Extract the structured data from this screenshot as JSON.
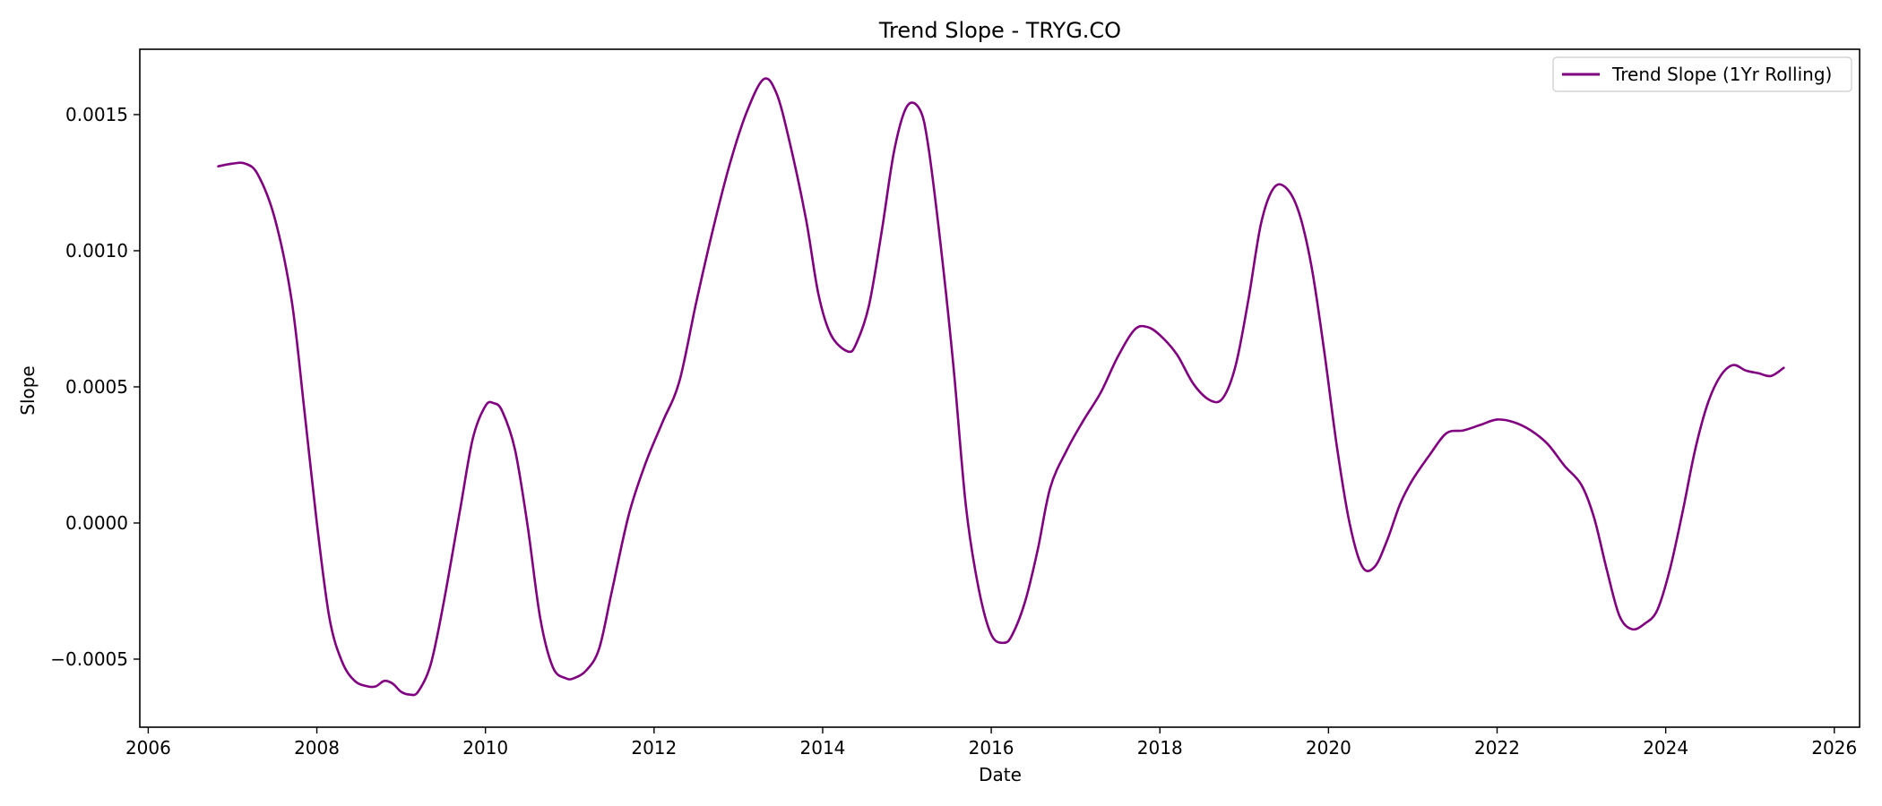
{
  "chart_data": {
    "type": "line",
    "title": "Trend Slope - TRYG.CO",
    "xlabel": "Date",
    "ylabel": "Slope",
    "xlim": [
      2005.9,
      2026.3
    ],
    "ylim": [
      -0.00075,
      0.00174
    ],
    "x_ticks": [
      2006,
      2008,
      2010,
      2012,
      2014,
      2016,
      2018,
      2020,
      2022,
      2024,
      2026
    ],
    "x_tick_labels": [
      "2006",
      "2008",
      "2010",
      "2012",
      "2014",
      "2016",
      "2018",
      "2020",
      "2022",
      "2024",
      "2026"
    ],
    "y_ticks": [
      -0.0005,
      0.0,
      0.0005,
      0.001,
      0.0015
    ],
    "y_tick_labels": [
      "−0.0005",
      "0.0000",
      "0.0005",
      "0.0010",
      "0.0015"
    ],
    "grid": false,
    "legend_position": "top-right",
    "series": [
      {
        "name": "Trend Slope (1Yr Rolling)",
        "color": "#800080",
        "x": [
          2006.83,
          2007.0,
          2007.15,
          2007.3,
          2007.5,
          2007.7,
          2007.85,
          2008.0,
          2008.15,
          2008.3,
          2008.45,
          2008.6,
          2008.7,
          2008.8,
          2008.9,
          2009.0,
          2009.1,
          2009.2,
          2009.35,
          2009.5,
          2009.7,
          2009.85,
          2010.0,
          2010.1,
          2010.2,
          2010.35,
          2010.5,
          2010.65,
          2010.8,
          2010.95,
          2011.05,
          2011.2,
          2011.35,
          2011.5,
          2011.7,
          2011.9,
          2012.1,
          2012.3,
          2012.5,
          2012.7,
          2012.9,
          2013.1,
          2013.3,
          2013.45,
          2013.6,
          2013.8,
          2013.95,
          2014.1,
          2014.3,
          2014.4,
          2014.55,
          2014.7,
          2014.85,
          2015.0,
          2015.15,
          2015.25,
          2015.4,
          2015.55,
          2015.7,
          2015.85,
          2016.0,
          2016.15,
          2016.25,
          2016.4,
          2016.55,
          2016.7,
          2016.9,
          2017.1,
          2017.3,
          2017.5,
          2017.7,
          2017.85,
          2018.0,
          2018.2,
          2018.4,
          2018.6,
          2018.75,
          2018.9,
          2019.05,
          2019.2,
          2019.35,
          2019.5,
          2019.65,
          2019.8,
          2019.95,
          2020.1,
          2020.25,
          2020.4,
          2020.55,
          2020.7,
          2020.85,
          2021.0,
          2021.2,
          2021.4,
          2021.6,
          2021.8,
          2022.0,
          2022.2,
          2022.4,
          2022.6,
          2022.8,
          2023.0,
          2023.15,
          2023.3,
          2023.45,
          2023.6,
          2023.75,
          2023.9,
          2024.05,
          2024.2,
          2024.35,
          2024.5,
          2024.65,
          2024.8,
          2024.95,
          2025.1,
          2025.25,
          2025.4
        ],
        "y": [
          0.00131,
          0.00132,
          0.00132,
          0.00128,
          0.00112,
          0.00082,
          0.00042,
          0.0,
          -0.00035,
          -0.00051,
          -0.00058,
          -0.0006,
          -0.0006,
          -0.00058,
          -0.00059,
          -0.00062,
          -0.00063,
          -0.00062,
          -0.00052,
          -0.0003,
          5e-05,
          0.00031,
          0.00043,
          0.00044,
          0.00041,
          0.00027,
          -1e-05,
          -0.00035,
          -0.00053,
          -0.00057,
          -0.00057,
          -0.00054,
          -0.00046,
          -0.00025,
          3e-05,
          0.00022,
          0.00037,
          0.00052,
          0.00081,
          0.00108,
          0.00132,
          0.00151,
          0.00163,
          0.00158,
          0.00141,
          0.00112,
          0.00084,
          0.00069,
          0.00063,
          0.00066,
          0.0008,
          0.00107,
          0.00137,
          0.00153,
          0.00152,
          0.00139,
          0.00102,
          0.00058,
          6e-05,
          -0.00024,
          -0.00041,
          -0.00044,
          -0.00041,
          -0.00029,
          -0.0001,
          0.00013,
          0.00027,
          0.00038,
          0.00048,
          0.00061,
          0.00071,
          0.00072,
          0.00069,
          0.00062,
          0.00051,
          0.00045,
          0.00046,
          0.00058,
          0.00082,
          0.0011,
          0.00123,
          0.00123,
          0.00114,
          0.00094,
          0.00063,
          0.00028,
          0.0,
          -0.00016,
          -0.00016,
          -6e-05,
          7e-05,
          0.00016,
          0.00025,
          0.00033,
          0.00034,
          0.00036,
          0.00038,
          0.00037,
          0.00034,
          0.00029,
          0.00021,
          0.00014,
          2e-05,
          -0.00017,
          -0.00034,
          -0.00039,
          -0.00037,
          -0.00032,
          -0.00017,
          4e-05,
          0.00027,
          0.00044,
          0.00054,
          0.00058,
          0.00056,
          0.00055,
          0.00054,
          0.00057
        ]
      }
    ]
  }
}
